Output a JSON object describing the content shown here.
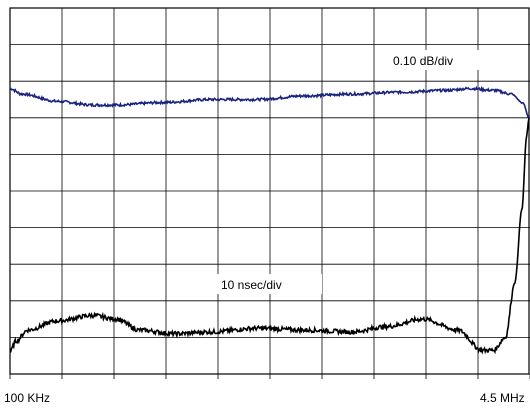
{
  "chart_data": {
    "type": "line",
    "x_labels": {
      "start": "100 KHz",
      "end": "4.5 MHz"
    },
    "x_range_mhz": [
      0.1,
      4.5
    ],
    "grid": true,
    "divisions": {
      "x": 10,
      "y": 10
    },
    "series": [
      {
        "name": "0.10 dB/div",
        "color": "#1a237e",
        "unit": "div",
        "x": [
          0.1,
          0.2,
          0.5,
          0.8,
          1.0,
          1.4,
          1.8,
          2.2,
          2.6,
          3.0,
          3.4,
          3.8,
          4.0,
          4.2,
          4.35,
          4.45,
          4.5
        ],
        "y": [
          7.8,
          7.65,
          7.45,
          7.35,
          7.35,
          7.42,
          7.5,
          7.5,
          7.6,
          7.65,
          7.7,
          7.75,
          7.8,
          7.75,
          7.65,
          7.4,
          7.0
        ]
      },
      {
        "name": "10 nsec/div",
        "color": "#000000",
        "unit": "div",
        "x": [
          0.1,
          0.15,
          0.25,
          0.5,
          0.8,
          1.0,
          1.2,
          1.5,
          1.8,
          2.2,
          2.6,
          3.0,
          3.3,
          3.6,
          3.9,
          4.1,
          4.2,
          4.3,
          4.38,
          4.44,
          4.48,
          4.5
        ],
        "y": [
          0.6,
          0.9,
          1.2,
          1.45,
          1.6,
          1.5,
          1.2,
          1.1,
          1.15,
          1.25,
          1.2,
          1.15,
          1.3,
          1.5,
          1.2,
          0.65,
          0.65,
          1.0,
          2.5,
          4.5,
          6.5,
          7.0
        ]
      }
    ]
  }
}
